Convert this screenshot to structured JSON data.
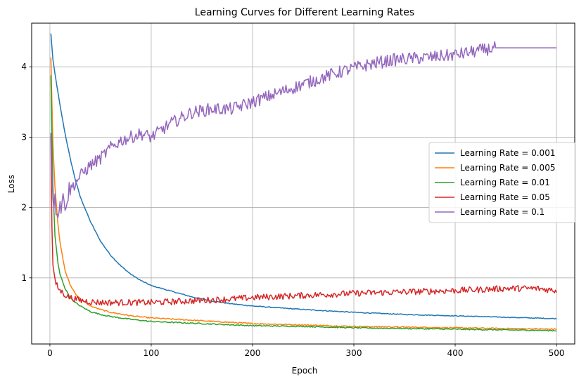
{
  "chart_data": {
    "type": "line",
    "title": "Learning Curves for Different Learning Rates",
    "xlabel": "Epoch",
    "ylabel": "Loss",
    "xlim": [
      -18,
      518
    ],
    "ylim": [
      0.06,
      4.62
    ],
    "xticks": [
      0,
      100,
      200,
      300,
      400,
      500
    ],
    "yticks": [
      1,
      2,
      3,
      4
    ],
    "grid": true,
    "legend_position": "center-right",
    "series": [
      {
        "name": "Learning Rate = 0.001",
        "color": "#1f77b4",
        "x": [
          1,
          3,
          5,
          10,
          15,
          20,
          25,
          30,
          40,
          50,
          60,
          70,
          80,
          90,
          100,
          120,
          140,
          160,
          180,
          200,
          250,
          300,
          350,
          400,
          450,
          500
        ],
        "y": [
          4.47,
          4.1,
          3.9,
          3.45,
          3.05,
          2.7,
          2.4,
          2.15,
          1.8,
          1.52,
          1.32,
          1.17,
          1.05,
          0.96,
          0.89,
          0.81,
          0.73,
          0.67,
          0.63,
          0.6,
          0.55,
          0.51,
          0.48,
          0.46,
          0.44,
          0.42
        ]
      },
      {
        "name": "Learning Rate = 0.005",
        "color": "#ff7f0e",
        "x": [
          1,
          2,
          3,
          5,
          8,
          10,
          15,
          20,
          25,
          30,
          40,
          50,
          60,
          80,
          100,
          150,
          200,
          250,
          300,
          350,
          400,
          450,
          500
        ],
        "y": [
          4.13,
          3.5,
          2.9,
          2.3,
          1.75,
          1.5,
          1.1,
          0.9,
          0.78,
          0.7,
          0.6,
          0.55,
          0.51,
          0.46,
          0.43,
          0.39,
          0.35,
          0.33,
          0.31,
          0.3,
          0.29,
          0.28,
          0.27
        ]
      },
      {
        "name": "Learning Rate = 0.01",
        "color": "#2ca02c",
        "x": [
          1,
          2,
          3,
          5,
          8,
          10,
          15,
          20,
          25,
          30,
          40,
          50,
          60,
          80,
          100,
          150,
          200,
          250,
          300,
          350,
          400,
          450,
          500
        ],
        "y": [
          3.88,
          3.0,
          2.3,
          1.6,
          1.2,
          1.05,
          0.85,
          0.72,
          0.65,
          0.6,
          0.52,
          0.48,
          0.45,
          0.41,
          0.38,
          0.35,
          0.32,
          0.31,
          0.29,
          0.28,
          0.27,
          0.26,
          0.25
        ]
      },
      {
        "name": "Learning Rate = 0.05",
        "color": "#d62728",
        "x": [
          1,
          2,
          3,
          5,
          8,
          10,
          15,
          20,
          30,
          40,
          50,
          60,
          80,
          100,
          120,
          150,
          180,
          200,
          250,
          300,
          350,
          400,
          420,
          450,
          480,
          500
        ],
        "y": [
          3.05,
          1.7,
          1.2,
          0.95,
          0.86,
          0.82,
          0.76,
          0.72,
          0.68,
          0.66,
          0.65,
          0.65,
          0.65,
          0.65,
          0.66,
          0.68,
          0.7,
          0.72,
          0.75,
          0.78,
          0.8,
          0.82,
          0.83,
          0.85,
          0.85,
          0.82
        ]
      },
      {
        "name": "Learning Rate = 0.1",
        "color": "#9467bd",
        "x": [
          1,
          2,
          3,
          5,
          8,
          10,
          15,
          20,
          25,
          30,
          40,
          50,
          60,
          70,
          80,
          90,
          100,
          120,
          140,
          160,
          180,
          200,
          220,
          240,
          260,
          280,
          300,
          320,
          340,
          360,
          380,
          400,
          420,
          440,
          460,
          480,
          500
        ],
        "y": [
          3.05,
          2.6,
          2.2,
          2.05,
          2.0,
          2.05,
          2.1,
          2.25,
          2.35,
          2.45,
          2.6,
          2.7,
          2.85,
          2.95,
          3.0,
          3.05,
          3.0,
          3.2,
          3.35,
          3.4,
          3.4,
          3.5,
          3.6,
          3.7,
          3.8,
          3.9,
          3.98,
          4.05,
          4.1,
          4.12,
          4.14,
          4.17,
          4.22,
          4.27,
          4.27,
          4.27,
          4.27
        ]
      }
    ]
  }
}
